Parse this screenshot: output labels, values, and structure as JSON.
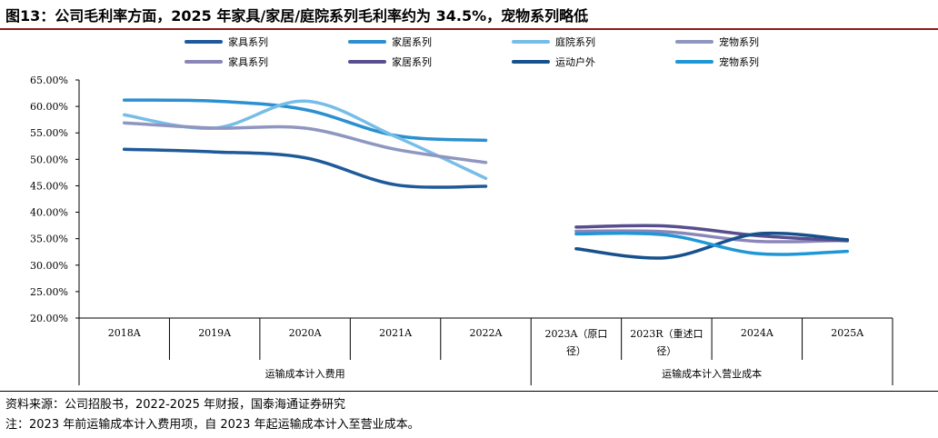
{
  "header": {
    "title": "图13：公司毛利率方面，2025 年家具/家居/庭院系列毛利率约为 34.5%，宠物系列略低"
  },
  "footer": {
    "source": "资料来源：公司招股书，2022-2025 年财报，国泰海通证券研究",
    "note": "注：2023 年前运输成本计入费用项，自 2023 年起运输成本计入至营业成本。"
  },
  "chart_data": {
    "type": "line",
    "categories": [
      "2018A",
      "2019A",
      "2020A",
      "2021A",
      "2022A",
      "2023A（原口径）",
      "2023R（重述口径）",
      "2024A",
      "2025A"
    ],
    "category_lines": [
      [
        "2018A"
      ],
      [
        "2019A"
      ],
      [
        "2020A"
      ],
      [
        "2021A"
      ],
      [
        "2022A"
      ],
      [
        "2023A（原口",
        "径）"
      ],
      [
        "2023R（重述口",
        "径）"
      ],
      [
        "2024A"
      ],
      [
        "2025A"
      ]
    ],
    "groups": [
      {
        "label": "运输成本计入费用",
        "span": [
          0,
          4
        ]
      },
      {
        "label": "运输成本计入营业成本",
        "span": [
          5,
          8
        ]
      }
    ],
    "yticks": [
      "65.00%",
      "60.00%",
      "55.00%",
      "50.00%",
      "45.00%",
      "40.00%",
      "35.00%",
      "30.00%",
      "25.00%",
      "20.00%"
    ],
    "ylim": [
      20,
      65
    ],
    "unit": "%",
    "grid": false,
    "legend_position": "top",
    "series": [
      {
        "name": "家具系列",
        "color": "#1e5a9a",
        "values": [
          51.9,
          51.4,
          50.3,
          45.2,
          44.9,
          null,
          null,
          null,
          null
        ]
      },
      {
        "name": "家居系列",
        "color": "#2b8fd0",
        "values": [
          61.2,
          61.0,
          59.4,
          54.5,
          53.6,
          null,
          null,
          null,
          null
        ]
      },
      {
        "name": "庭院系列",
        "color": "#76bde8",
        "values": [
          58.4,
          55.9,
          61.0,
          54.3,
          46.4,
          null,
          null,
          null,
          null
        ]
      },
      {
        "name": "宠物系列",
        "color": "#8f96bf",
        "values": [
          56.9,
          55.9,
          55.9,
          51.9,
          49.4,
          null,
          null,
          null,
          null
        ]
      },
      {
        "name": "家具系列",
        "color": "#8a86b8",
        "values": [
          null,
          null,
          null,
          null,
          null,
          36.4,
          36.3,
          34.5,
          34.7
        ]
      },
      {
        "name": "家居系列",
        "color": "#584e8e",
        "values": [
          null,
          null,
          null,
          null,
          null,
          37.2,
          37.4,
          35.6,
          34.6
        ]
      },
      {
        "name": "运动户外",
        "color": "#17518d",
        "values": [
          null,
          null,
          null,
          null,
          null,
          33.1,
          31.4,
          35.9,
          34.8
        ]
      },
      {
        "name": "宠物系列",
        "color": "#1f96d6",
        "values": [
          null,
          null,
          null,
          null,
          null,
          35.9,
          35.7,
          32.2,
          32.6
        ]
      }
    ]
  }
}
